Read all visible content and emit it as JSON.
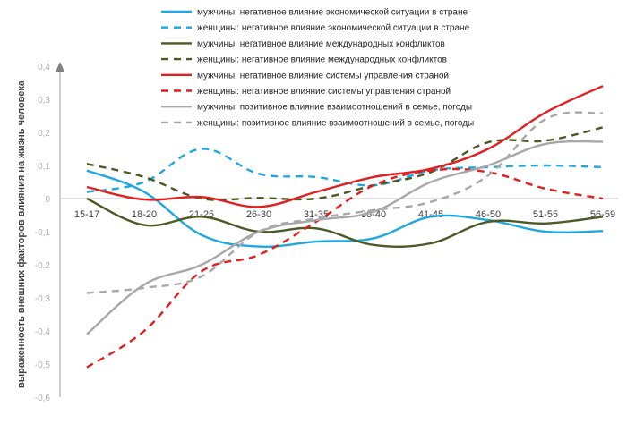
{
  "chart_data": {
    "type": "line",
    "title": "",
    "xlabel": "",
    "ylabel": "выраженность внешних факторов влияния на жизнь человека",
    "categories": [
      "15-17",
      "18-20",
      "21-25",
      "26-30",
      "31-35",
      "36-40",
      "41-45",
      "46-50",
      "51-55",
      "56-59"
    ],
    "ylim": [
      -0.6,
      0.4
    ],
    "yticks": [
      "0,4",
      "0,3",
      "0,2",
      "0,1",
      "0",
      "-0,1",
      "-0,2",
      "-0,3",
      "-0,4",
      "-0,5",
      "-0,6"
    ],
    "ytick_values": [
      0.4,
      0.3,
      0.2,
      0.1,
      0,
      -0.1,
      -0.2,
      -0.3,
      -0.4,
      -0.5,
      -0.6
    ],
    "legend_position": "top",
    "series": [
      {
        "name": "мужчины: негативное влияние экономической ситуации в стране",
        "color": "#1fa8e0",
        "dash": "solid",
        "values": [
          0.085,
          0.02,
          -0.11,
          -0.145,
          -0.13,
          -0.12,
          -0.055,
          -0.065,
          -0.1,
          -0.098
        ]
      },
      {
        "name": "женщины: негативное влияние экономической ситуации в стране",
        "color": "#1fa8e0",
        "dash": "dashed",
        "values": [
          0.02,
          0.05,
          0.15,
          0.075,
          0.065,
          0.04,
          0.085,
          0.095,
          0.1,
          0.095
        ]
      },
      {
        "name": "мужчины: негативное влияние международных конфликтов",
        "color": "#4a5a23",
        "dash": "solid",
        "values": [
          0.0,
          -0.08,
          -0.055,
          -0.1,
          -0.09,
          -0.14,
          -0.135,
          -0.07,
          -0.075,
          -0.055
        ]
      },
      {
        "name": "женщины:  негативное влияние международных конфликтов",
        "color": "#4a5a23",
        "dash": "dashed",
        "values": [
          0.105,
          0.065,
          0.0,
          0.002,
          0.0,
          0.04,
          0.08,
          0.17,
          0.175,
          0.215
        ]
      },
      {
        "name": "мужчины: негативное влияние системы управления страной",
        "color": "#e02020",
        "dash": "solid",
        "values": [
          0.035,
          -0.003,
          0.005,
          -0.025,
          0.02,
          0.065,
          0.09,
          0.15,
          0.26,
          0.34
        ]
      },
      {
        "name": "женщины: негативное влияние системы управления страной",
        "color": "#e02020",
        "dash": "dashed",
        "values": [
          -0.51,
          -0.4,
          -0.22,
          -0.17,
          -0.07,
          0.04,
          0.085,
          0.08,
          0.03,
          0.0
        ]
      },
      {
        "name": "мужчины: позитивное влияние взаимоотношений в семье, погоды",
        "color": "#a8a8a8",
        "dash": "solid",
        "values": [
          -0.41,
          -0.26,
          -0.2,
          -0.1,
          -0.065,
          -0.04,
          0.05,
          0.1,
          0.165,
          0.172
        ]
      },
      {
        "name": "женщины:  позитивное влияние взаимоотношений в семье, погоды",
        "color": "#a8a8a8",
        "dash": "dashed",
        "values": [
          -0.285,
          -0.27,
          -0.235,
          -0.1,
          -0.06,
          -0.035,
          -0.01,
          0.07,
          0.24,
          0.258
        ]
      }
    ]
  }
}
